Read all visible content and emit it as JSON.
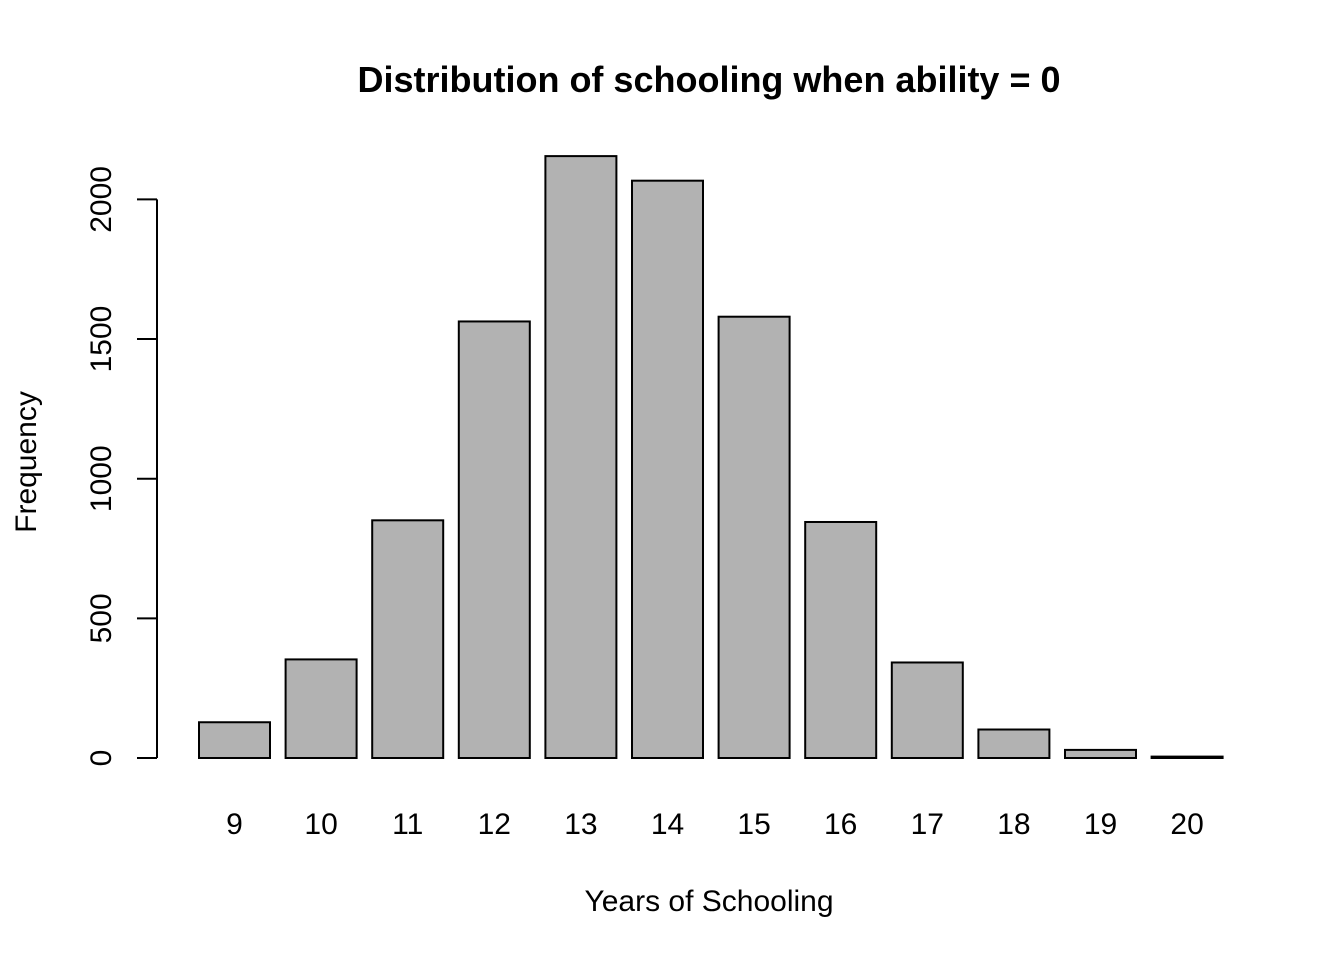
{
  "chart_data": {
    "type": "bar",
    "title": "Distribution of schooling when ability = 0",
    "xlabel": "Years of Schooling",
    "ylabel": "Frequency",
    "categories": [
      "9",
      "10",
      "11",
      "12",
      "13",
      "14",
      "15",
      "16",
      "17",
      "18",
      "19",
      "20"
    ],
    "values": [
      128,
      353,
      851,
      1563,
      2155,
      2067,
      1580,
      845,
      342,
      102,
      29,
      5
    ],
    "ylim": [
      0,
      2200
    ],
    "yticks": [
      0,
      500,
      1000,
      1500,
      2000
    ],
    "grid": false,
    "legend": "none",
    "colors": {
      "bar_fill": "#b2b2b2",
      "bar_stroke": "#000000"
    }
  }
}
